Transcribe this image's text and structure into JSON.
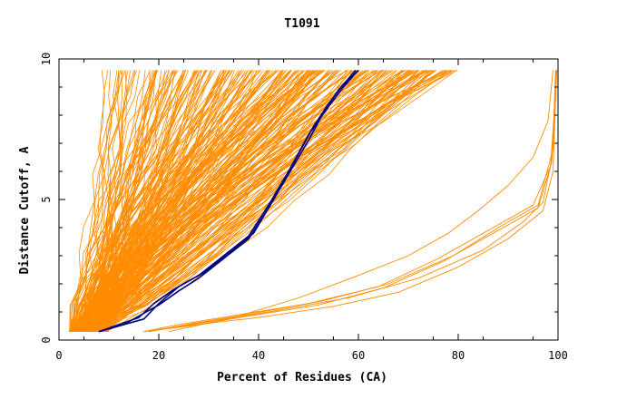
{
  "chart_data": {
    "type": "line",
    "title": "T1091",
    "xlabel": "Percent of Residues (CA)",
    "ylabel": "Distance Cutoff, A",
    "xlim": [
      0,
      100
    ],
    "ylim": [
      0,
      10
    ],
    "x_ticks": [
      "0",
      "20",
      "40",
      "60",
      "80",
      "100"
    ],
    "y_ticks": [
      "0",
      "5",
      "10"
    ],
    "grid": false,
    "colors": {
      "models": "#ff8c00",
      "highlight": "#000080",
      "axes": "#000000"
    },
    "series_groups": [
      {
        "role": "main",
        "color": "#ff8c00",
        "count": 260,
        "y_start": 0.3,
        "y_end": 9.6,
        "x_start_range": [
          2,
          10
        ],
        "x_end_range": [
          8,
          80
        ]
      },
      {
        "role": "outlier",
        "color": "#ff8c00",
        "series": [
          {
            "x": [
              17,
              25,
              40,
              55,
              68,
              80,
              90,
              97,
              99,
              99.5,
              99.7
            ],
            "y": [
              0.3,
              0.5,
              0.8,
              1.2,
              1.7,
              2.6,
              3.6,
              4.6,
              6.0,
              8.5,
              9.6
            ]
          },
          {
            "x": [
              18,
              28,
              42,
              58,
              72,
              85,
              93,
              97,
              98.8,
              99.4,
              99.6
            ],
            "y": [
              0.3,
              0.6,
              1.0,
              1.5,
              2.2,
              3.2,
              4.2,
              4.9,
              6.5,
              8.6,
              9.6
            ]
          },
          {
            "x": [
              17,
              24,
              36,
              50,
              64,
              76,
              87,
              95,
              98.5,
              99.2,
              99.5
            ],
            "y": [
              0.3,
              0.55,
              0.9,
              1.3,
              1.9,
              2.9,
              4.0,
              4.8,
              6.2,
              8.0,
              9.6
            ]
          },
          {
            "x": [
              18,
              27,
              39,
              53,
              66,
              79,
              89,
              96,
              99,
              99.5,
              99.8
            ],
            "y": [
              0.3,
              0.6,
              0.95,
              1.4,
              2.0,
              3.0,
              4.1,
              4.8,
              6.8,
              8.9,
              9.6
            ]
          },
          {
            "x": [
              17,
              26,
              38,
              52,
              65,
              77,
              88,
              96,
              98.7,
              99.3,
              99.6
            ],
            "y": [
              0.3,
              0.5,
              0.85,
              1.25,
              1.85,
              2.8,
              3.9,
              4.7,
              6.3,
              8.4,
              9.6
            ]
          },
          {
            "x": [
              22,
              35,
              48,
              60,
              70,
              78,
              84,
              90,
              95,
              98,
              99
            ],
            "y": [
              0.3,
              0.8,
              1.5,
              2.3,
              3.0,
              3.8,
              4.6,
              5.5,
              6.5,
              7.8,
              9.6
            ]
          }
        ]
      },
      {
        "role": "highlight",
        "color": "#000080",
        "series": [
          {
            "x": [
              8,
              12,
              16,
              19,
              23,
              28,
              33,
              38,
              42,
              46,
              50,
              54,
              57,
              60
            ],
            "y": [
              0.3,
              0.55,
              0.8,
              1.3,
              1.8,
              2.3,
              3.0,
              3.7,
              4.8,
              6.0,
              7.3,
              8.3,
              9.0,
              9.6
            ]
          },
          {
            "x": [
              8,
              12,
              17,
              20,
              24,
              29,
              34,
              39,
              43,
              47,
              51,
              54,
              57,
              59.5
            ],
            "y": [
              0.3,
              0.5,
              0.75,
              1.3,
              1.9,
              2.4,
              3.1,
              3.8,
              5.0,
              6.3,
              7.6,
              8.4,
              9.1,
              9.6
            ]
          },
          {
            "x": [
              8,
              13,
              16,
              20,
              24,
              28,
              33,
              38,
              42,
              46,
              50,
              53,
              56,
              60
            ],
            "y": [
              0.3,
              0.55,
              0.85,
              1.25,
              1.75,
              2.2,
              2.9,
              3.6,
              4.7,
              5.9,
              7.1,
              8.1,
              8.9,
              9.6
            ]
          }
        ]
      }
    ]
  }
}
